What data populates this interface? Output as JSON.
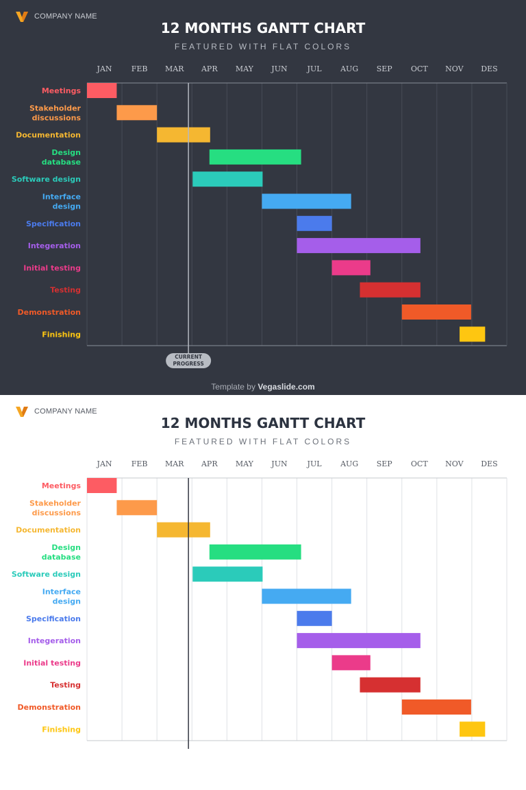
{
  "brand": {
    "company": "COMPANY NAME",
    "logo_color": "#f5a623"
  },
  "title": "12 MONTHS GANTT CHART",
  "subtitle": "FEATURED WITH FLAT COLORS",
  "footer": {
    "prefix": "Template by",
    "site": "Vegaslide.com"
  },
  "marker": {
    "label_line1": "CURRENT",
    "label_line2": "PROGRESS"
  },
  "chart_data": {
    "type": "gantt",
    "title": "12 MONTHS GANTT CHART",
    "subtitle": "FEATURED WITH FLAT COLORS",
    "months": [
      "JAN",
      "FEB",
      "MAR",
      "APR",
      "MAY",
      "JUN",
      "JUL",
      "AUG",
      "SEP",
      "OCT",
      "NOV",
      "DES"
    ],
    "x_range": [
      0,
      12
    ],
    "grid": true,
    "current_progress": 2.9,
    "tasks": [
      {
        "label_lines": [
          "Meetings"
        ],
        "start": 0.0,
        "end": 0.85,
        "color": "#fd5c63"
      },
      {
        "label_lines": [
          "Stakeholder",
          "discussions"
        ],
        "start": 0.85,
        "end": 2.0,
        "color": "#fd9a4a"
      },
      {
        "label_lines": [
          "Documentation"
        ],
        "start": 2.0,
        "end": 3.52,
        "color": "#f5b731"
      },
      {
        "label_lines": [
          "Design",
          "database"
        ],
        "start": 3.5,
        "end": 6.12,
        "color": "#26de81"
      },
      {
        "label_lines": [
          "Software design"
        ],
        "start": 3.02,
        "end": 5.02,
        "color": "#2bcbba"
      },
      {
        "label_lines": [
          "Interface",
          "design"
        ],
        "start": 5.0,
        "end": 7.55,
        "color": "#45aaf2"
      },
      {
        "label_lines": [
          "Specification"
        ],
        "start": 6.0,
        "end": 7.0,
        "color": "#4b7bec"
      },
      {
        "label_lines": [
          "Integeration"
        ],
        "start": 6.0,
        "end": 9.53,
        "color": "#a55eea"
      },
      {
        "label_lines": [
          "Initial testing"
        ],
        "start": 7.0,
        "end": 8.1,
        "color": "#eb3b8a"
      },
      {
        "label_lines": [
          "Testing"
        ],
        "start": 7.8,
        "end": 9.53,
        "color": "#d63031"
      },
      {
        "label_lines": [
          "Demonstration"
        ],
        "start": 9.0,
        "end": 10.98,
        "color": "#f05a28"
      },
      {
        "label_lines": [
          "Finishing"
        ],
        "start": 10.65,
        "end": 11.38,
        "color": "#fec611"
      }
    ]
  }
}
